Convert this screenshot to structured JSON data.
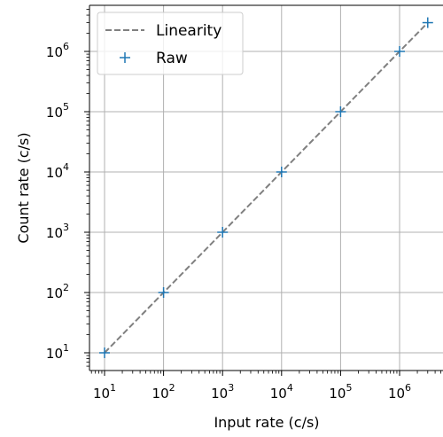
{
  "chart_data": {
    "type": "line",
    "xlabel": "Input rate (c/s)",
    "ylabel": "Count rate (c/s)",
    "xscale": "log",
    "yscale": "log",
    "xlim": [
      5,
      5000000
    ],
    "ylim": [
      5,
      5000000
    ],
    "grid": true,
    "legend_position": "top-left",
    "x_ticks": [
      {
        "value": 10,
        "base": "10",
        "exp": "1"
      },
      {
        "value": 100,
        "base": "10",
        "exp": "2"
      },
      {
        "value": 1000,
        "base": "10",
        "exp": "3"
      },
      {
        "value": 10000,
        "base": "10",
        "exp": "4"
      },
      {
        "value": 100000,
        "base": "10",
        "exp": "5"
      },
      {
        "value": 1000000,
        "base": "10",
        "exp": "6"
      }
    ],
    "y_ticks": [
      {
        "value": 10,
        "base": "10",
        "exp": "1"
      },
      {
        "value": 100,
        "base": "10",
        "exp": "2"
      },
      {
        "value": 1000,
        "base": "10",
        "exp": "3"
      },
      {
        "value": 10000,
        "base": "10",
        "exp": "4"
      },
      {
        "value": 100000,
        "base": "10",
        "exp": "5"
      },
      {
        "value": 1000000,
        "base": "10",
        "exp": "6"
      }
    ],
    "series": [
      {
        "name": "Linearity",
        "kind": "line",
        "style": "dashed",
        "color": "#808080",
        "x": [
          10,
          3000000
        ],
        "y": [
          10,
          3000000
        ]
      },
      {
        "name": "Raw",
        "kind": "scatter",
        "marker": "+",
        "color": "#1f77b4",
        "x": [
          10,
          100,
          1000,
          10000,
          100000,
          1000000,
          3000000
        ],
        "y": [
          10,
          100,
          1000,
          10000,
          100000,
          1000000,
          3000000
        ]
      }
    ]
  }
}
